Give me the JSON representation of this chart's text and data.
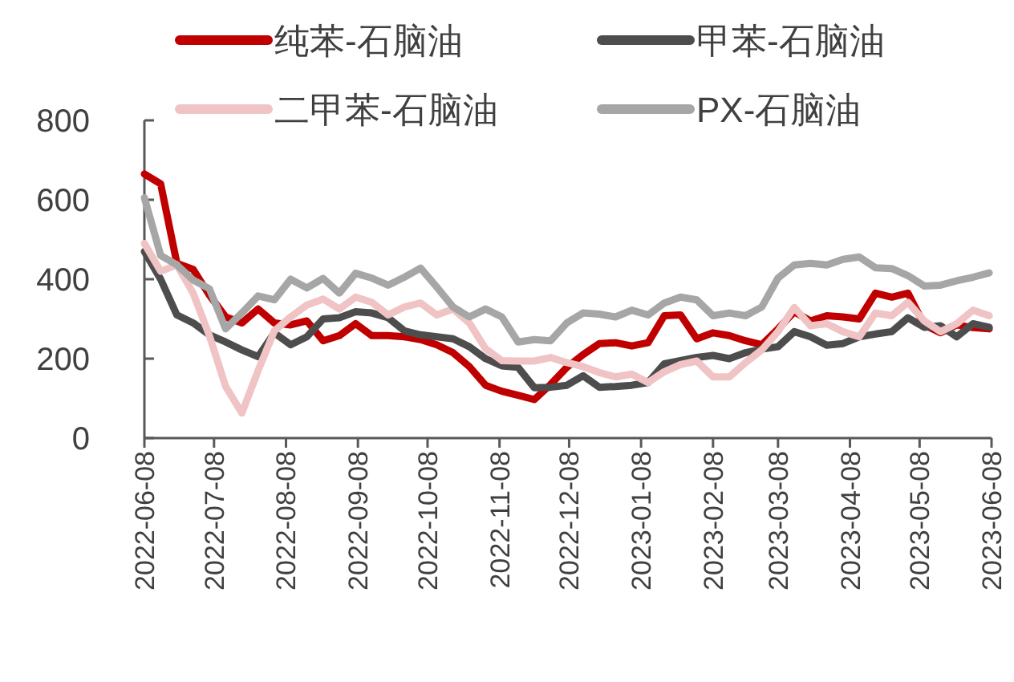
{
  "chart_data": {
    "type": "line",
    "legend": "top",
    "ylim": [
      0,
      800
    ],
    "yticks": [
      0,
      200,
      400,
      600,
      800
    ],
    "xlim": [
      "2022-06-08",
      "2023-06-08"
    ],
    "xticks": [
      "2022-06-08",
      "2022-07-08",
      "2022-08-08",
      "2022-09-08",
      "2022-10-08",
      "2022-11-08",
      "2022-12-08",
      "2023-01-08",
      "2023-02-08",
      "2023-03-08",
      "2023-04-08",
      "2023-05-08",
      "2023-06-08"
    ],
    "x": [
      "2022-06-08",
      "2022-06-15",
      "2022-06-22",
      "2022-06-29",
      "2022-07-06",
      "2022-07-13",
      "2022-07-20",
      "2022-07-27",
      "2022-08-03",
      "2022-08-10",
      "2022-08-17",
      "2022-08-24",
      "2022-08-31",
      "2022-09-07",
      "2022-09-14",
      "2022-09-21",
      "2022-09-28",
      "2022-10-05",
      "2022-10-12",
      "2022-10-19",
      "2022-10-26",
      "2022-11-02",
      "2022-11-09",
      "2022-11-16",
      "2022-11-23",
      "2022-11-30",
      "2022-12-07",
      "2022-12-14",
      "2022-12-21",
      "2022-12-28",
      "2023-01-04",
      "2023-01-11",
      "2023-01-18",
      "2023-01-25",
      "2023-02-01",
      "2023-02-08",
      "2023-02-15",
      "2023-02-22",
      "2023-03-01",
      "2023-03-08",
      "2023-03-15",
      "2023-03-22",
      "2023-03-29",
      "2023-04-05",
      "2023-04-12",
      "2023-04-19",
      "2023-04-26",
      "2023-05-03",
      "2023-05-10",
      "2023-05-17",
      "2023-05-24",
      "2023-05-31",
      "2023-06-07"
    ],
    "series": [
      {
        "name": "纯苯-石脑油",
        "color": "#c00000",
        "values": [
          665,
          640,
          440,
          425,
          360,
          305,
          290,
          325,
          290,
          285,
          295,
          245,
          258,
          288,
          258,
          258,
          255,
          248,
          235,
          215,
          180,
          133,
          118,
          108,
          97,
          135,
          178,
          210,
          238,
          240,
          232,
          240,
          308,
          310,
          250,
          265,
          258,
          245,
          235,
          275,
          318,
          295,
          308,
          305,
          300,
          365,
          355,
          365,
          285,
          265,
          285,
          278,
          275
        ]
      },
      {
        "name": "甲苯-石脑油",
        "color": "#4d4d4d",
        "values": [
          470,
          400,
          310,
          290,
          260,
          242,
          222,
          205,
          265,
          235,
          255,
          300,
          303,
          318,
          315,
          303,
          270,
          260,
          255,
          250,
          230,
          200,
          182,
          178,
          127,
          128,
          133,
          157,
          128,
          130,
          133,
          140,
          187,
          195,
          203,
          208,
          200,
          215,
          224,
          230,
          268,
          255,
          234,
          238,
          255,
          262,
          268,
          303,
          279,
          283,
          255,
          288,
          279
        ]
      },
      {
        "name": "二甲苯-石脑油",
        "color": "#f0c4c4",
        "values": [
          490,
          420,
          436,
          365,
          258,
          130,
          63,
          170,
          270,
          305,
          335,
          350,
          325,
          355,
          342,
          310,
          330,
          340,
          310,
          325,
          290,
          225,
          195,
          194,
          194,
          203,
          190,
          180,
          165,
          154,
          161,
          140,
          167,
          185,
          194,
          154,
          154,
          190,
          222,
          268,
          329,
          283,
          288,
          268,
          255,
          315,
          308,
          342,
          295,
          268,
          288,
          322,
          308
        ]
      },
      {
        "name": "PX-石脑油",
        "color": "#a6a6a6",
        "values": [
          605,
          460,
          436,
          398,
          376,
          275,
          315,
          358,
          348,
          400,
          378,
          402,
          365,
          415,
          403,
          385,
          405,
          428,
          380,
          330,
          305,
          325,
          305,
          242,
          248,
          245,
          290,
          315,
          312,
          305,
          322,
          310,
          340,
          355,
          348,
          308,
          315,
          308,
          330,
          403,
          436,
          440,
          436,
          450,
          456,
          429,
          427,
          409,
          383,
          385,
          396,
          405,
          416
        ]
      }
    ]
  }
}
